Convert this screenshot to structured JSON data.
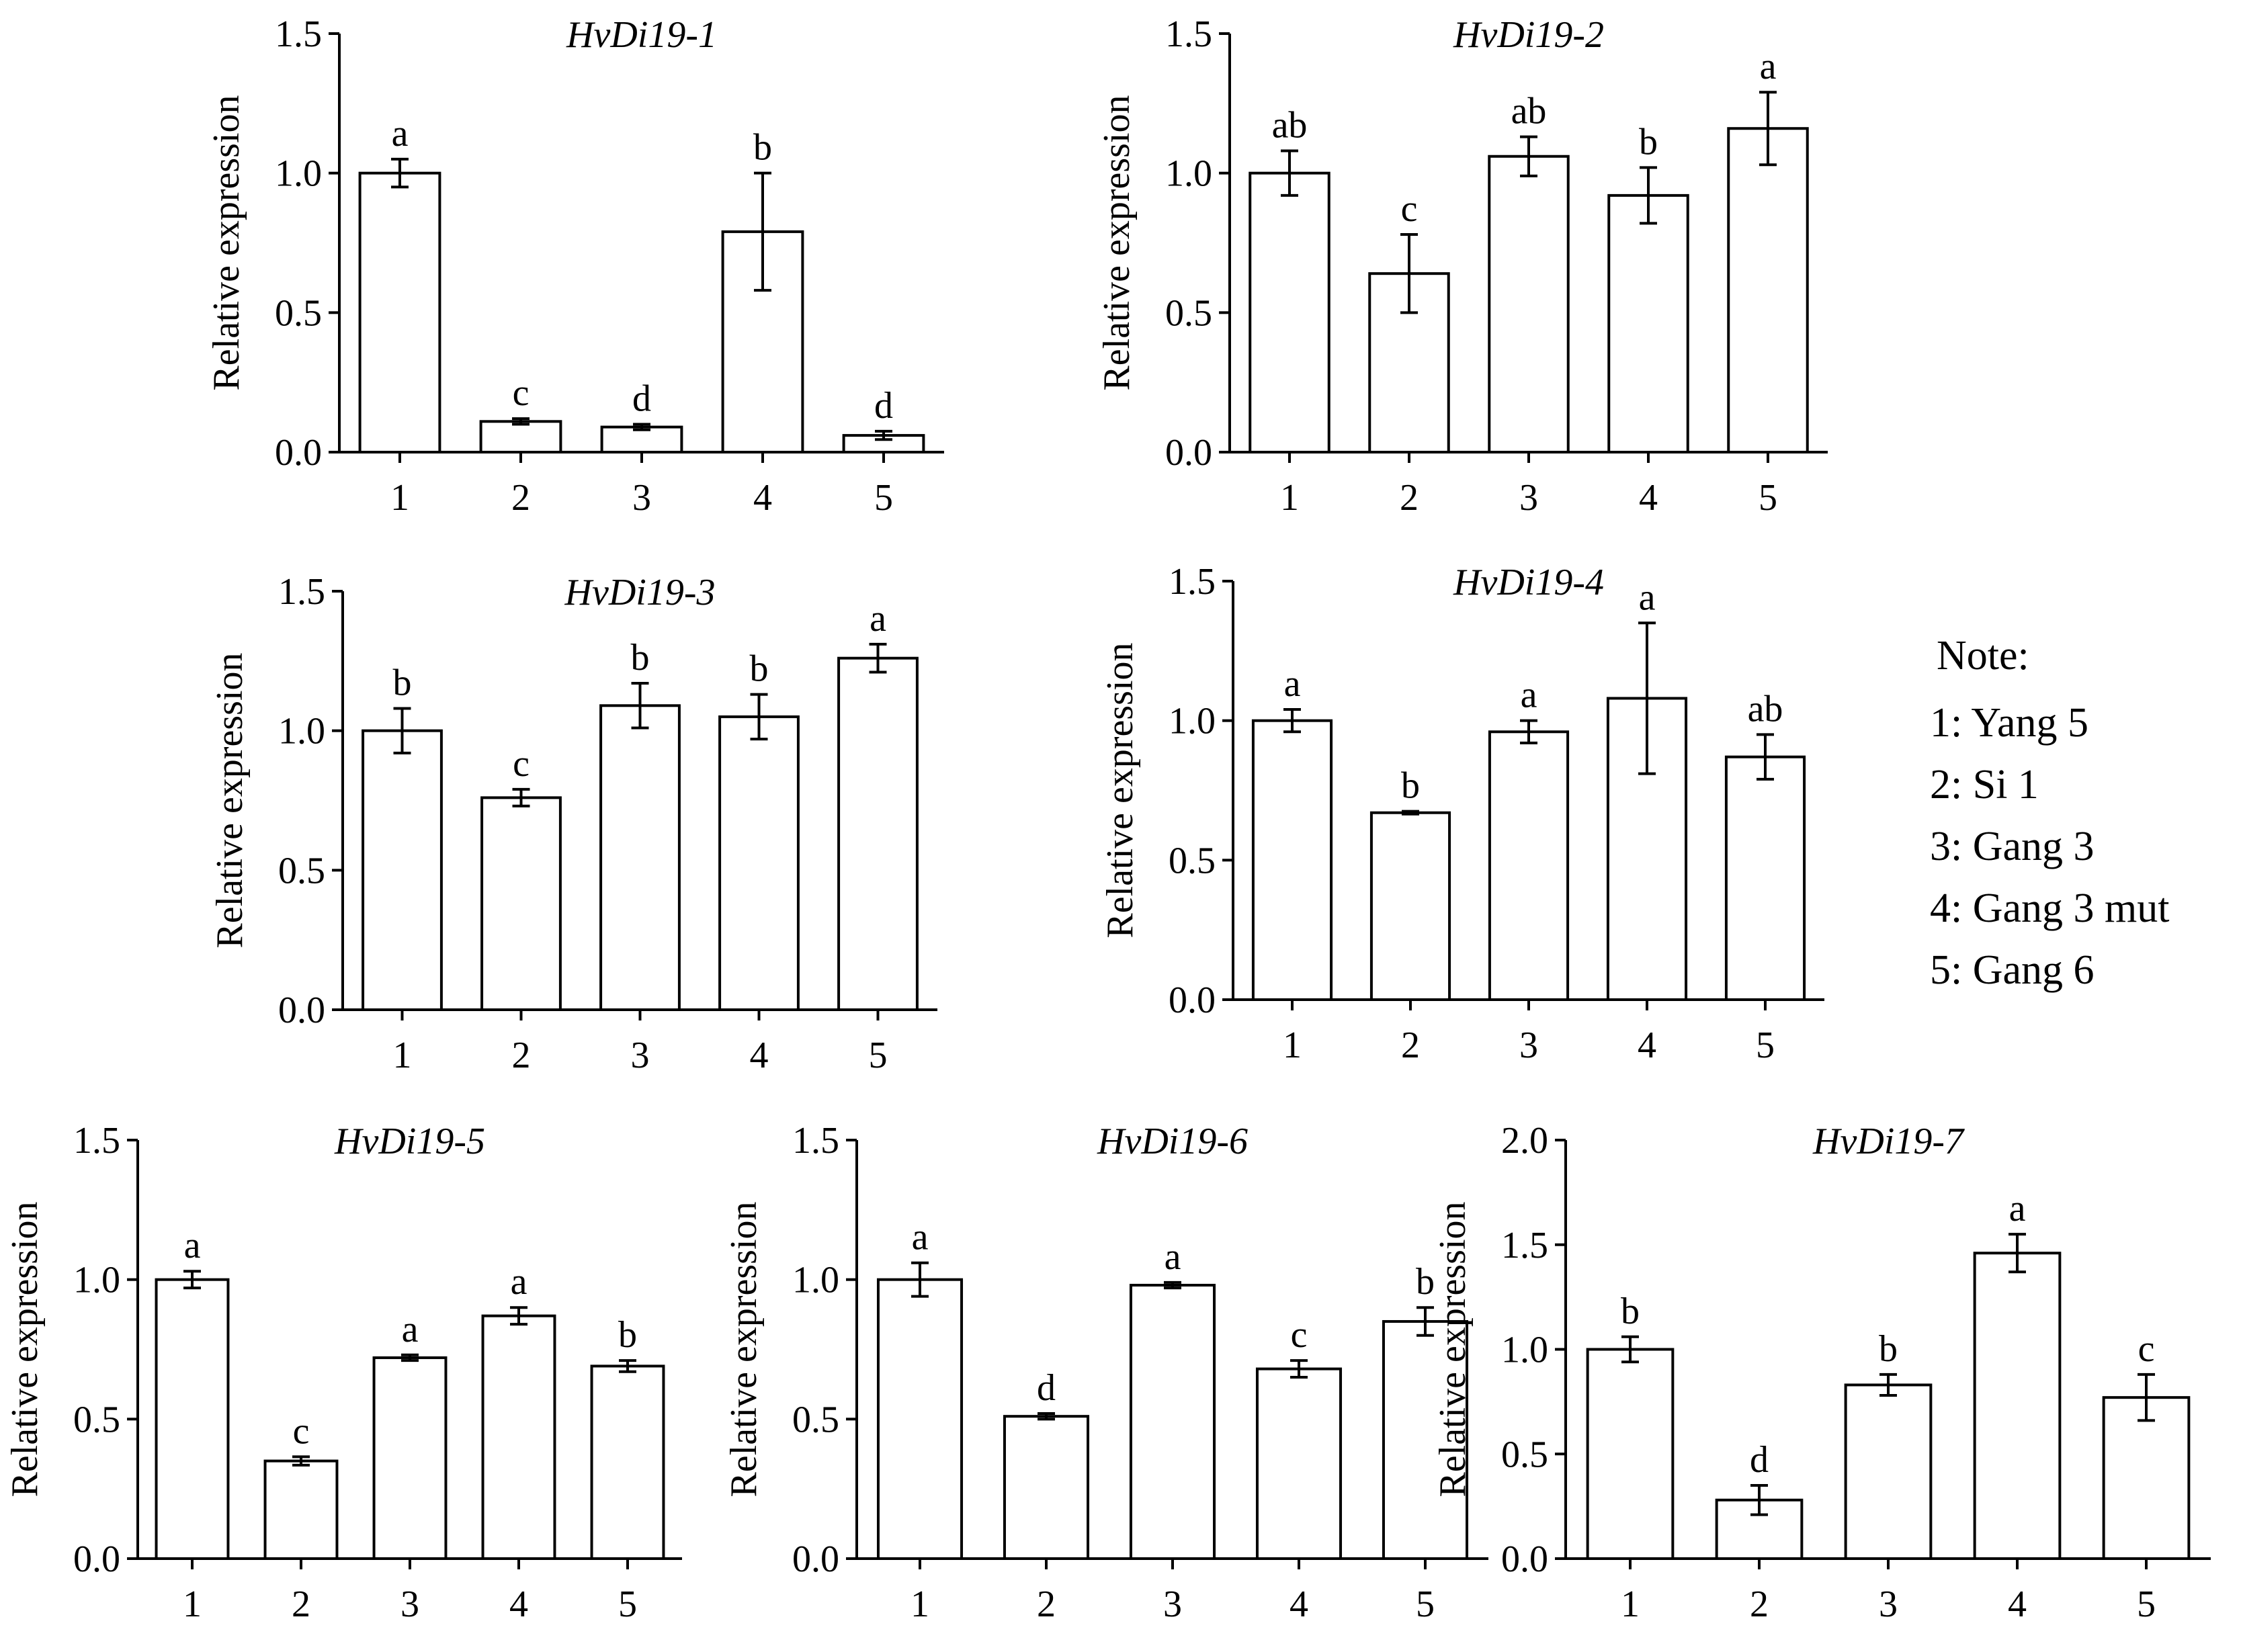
{
  "chart_data": [
    {
      "type": "bar",
      "title": "HvDi19-1",
      "ylabel": "Relative expression",
      "xlabel": "",
      "categories": [
        "1",
        "2",
        "3",
        "4",
        "5"
      ],
      "values": [
        1.0,
        0.11,
        0.09,
        0.79,
        0.06
      ],
      "errors": [
        0.05,
        0.01,
        0.01,
        0.21,
        0.015
      ],
      "letters": [
        "a",
        "c",
        "d",
        "b",
        "d"
      ],
      "ylim": [
        0,
        1.5
      ],
      "yticks": [
        "0.0",
        "0.5",
        "1.0",
        "1.5"
      ]
    },
    {
      "type": "bar",
      "title": "HvDi19-2",
      "ylabel": "Relative expression",
      "xlabel": "",
      "categories": [
        "1",
        "2",
        "3",
        "4",
        "5"
      ],
      "values": [
        1.0,
        0.64,
        1.06,
        0.92,
        1.16
      ],
      "errors": [
        0.08,
        0.14,
        0.07,
        0.1,
        0.13
      ],
      "letters": [
        "ab",
        "c",
        "ab",
        "b",
        "a"
      ],
      "ylim": [
        0,
        1.5
      ],
      "yticks": [
        "0.0",
        "0.5",
        "1.0",
        "1.5"
      ]
    },
    {
      "type": "bar",
      "title": "HvDi19-3",
      "ylabel": "Relative expression",
      "xlabel": "",
      "categories": [
        "1",
        "2",
        "3",
        "4",
        "5"
      ],
      "values": [
        1.0,
        0.76,
        1.09,
        1.05,
        1.26
      ],
      "errors": [
        0.08,
        0.03,
        0.08,
        0.08,
        0.05
      ],
      "letters": [
        "b",
        "c",
        "b",
        "b",
        "a"
      ],
      "ylim": [
        0,
        1.5
      ],
      "yticks": [
        "0.0",
        "0.5",
        "1.0",
        "1.5"
      ]
    },
    {
      "type": "bar",
      "title": "HvDi19-4",
      "ylabel": "Relative expression",
      "xlabel": "",
      "categories": [
        "1",
        "2",
        "3",
        "4",
        "5"
      ],
      "values": [
        1.0,
        0.67,
        0.96,
        1.08,
        0.87
      ],
      "errors": [
        0.04,
        0.005,
        0.04,
        0.27,
        0.08
      ],
      "letters": [
        "a",
        "b",
        "a",
        "a",
        "ab"
      ],
      "ylim": [
        0,
        1.5
      ],
      "yticks": [
        "0.0",
        "0.5",
        "1.0",
        "1.5"
      ]
    },
    {
      "type": "bar",
      "title": "HvDi19-5",
      "ylabel": "Relative expression",
      "xlabel": "",
      "categories": [
        "1",
        "2",
        "3",
        "4",
        "5"
      ],
      "values": [
        1.0,
        0.35,
        0.72,
        0.87,
        0.69
      ],
      "errors": [
        0.03,
        0.015,
        0.01,
        0.03,
        0.02
      ],
      "letters": [
        "a",
        "c",
        "a",
        "a",
        "b"
      ],
      "ylim": [
        0,
        1.5
      ],
      "yticks": [
        "0.0",
        "0.5",
        "1.0",
        "1.5"
      ]
    },
    {
      "type": "bar",
      "title": "HvDi19-6",
      "ylabel": "Relative expression",
      "xlabel": "",
      "categories": [
        "1",
        "2",
        "3",
        "4",
        "5"
      ],
      "values": [
        1.0,
        0.51,
        0.98,
        0.68,
        0.85
      ],
      "errors": [
        0.06,
        0.01,
        0.01,
        0.03,
        0.05
      ],
      "letters": [
        "a",
        "d",
        "a",
        "c",
        "b"
      ],
      "ylim": [
        0,
        1.5
      ],
      "yticks": [
        "0.0",
        "0.5",
        "1.0",
        "1.5"
      ]
    },
    {
      "type": "bar",
      "title": "HvDi19-7",
      "ylabel": "Relative expression",
      "xlabel": "",
      "categories": [
        "1",
        "2",
        "3",
        "4",
        "5"
      ],
      "values": [
        1.0,
        0.28,
        0.83,
        1.46,
        0.77
      ],
      "errors": [
        0.06,
        0.07,
        0.05,
        0.09,
        0.11
      ],
      "letters": [
        "b",
        "d",
        "b",
        "a",
        "c"
      ],
      "ylim": [
        0,
        2.0
      ],
      "yticks": [
        "0.0",
        "0.5",
        "1.0",
        "1.5",
        "2.0"
      ]
    }
  ],
  "note": {
    "heading": "Note:",
    "items": [
      "1: Yang 5",
      "2: Si 1",
      "3: Gang 3",
      "4: Gang 3 mut",
      "5: Gang 6"
    ]
  },
  "style": {
    "bar_fill": "#ffffff",
    "line_color": "#000000"
  }
}
